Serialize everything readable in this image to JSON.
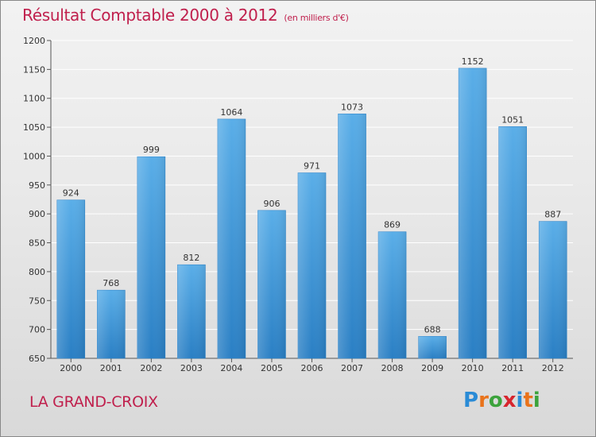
{
  "title": "Résultat Comptable 2000 à 2012",
  "subtitle": "(en milliers d'€)",
  "location": "LA GRAND-CROIX",
  "logo": {
    "letters": [
      "P",
      "r",
      "o",
      "x",
      "i",
      "t",
      "i"
    ],
    "colors": [
      "#2a8bd6",
      "#e9731b",
      "#3ca33c",
      "#d7262e",
      "#2a8bd6",
      "#e9731b",
      "#3ca33c"
    ]
  },
  "chart_data": {
    "type": "bar",
    "title": "Résultat Comptable 2000 à 2012",
    "subtitle": "(en milliers d'€)",
    "categories": [
      "2000",
      "2001",
      "2002",
      "2003",
      "2004",
      "2005",
      "2006",
      "2007",
      "2008",
      "2009",
      "2010",
      "2011",
      "2012"
    ],
    "values": [
      924,
      768,
      999,
      812,
      1064,
      906,
      971,
      1073,
      869,
      688,
      1152,
      1051,
      887
    ],
    "ylim": [
      650,
      1200
    ],
    "yticks": [
      650,
      700,
      750,
      800,
      850,
      900,
      950,
      1000,
      1050,
      1100,
      1150,
      1200
    ],
    "xlabel": "",
    "ylabel": "",
    "grid": true,
    "bar_color": "#3f9ee0"
  }
}
